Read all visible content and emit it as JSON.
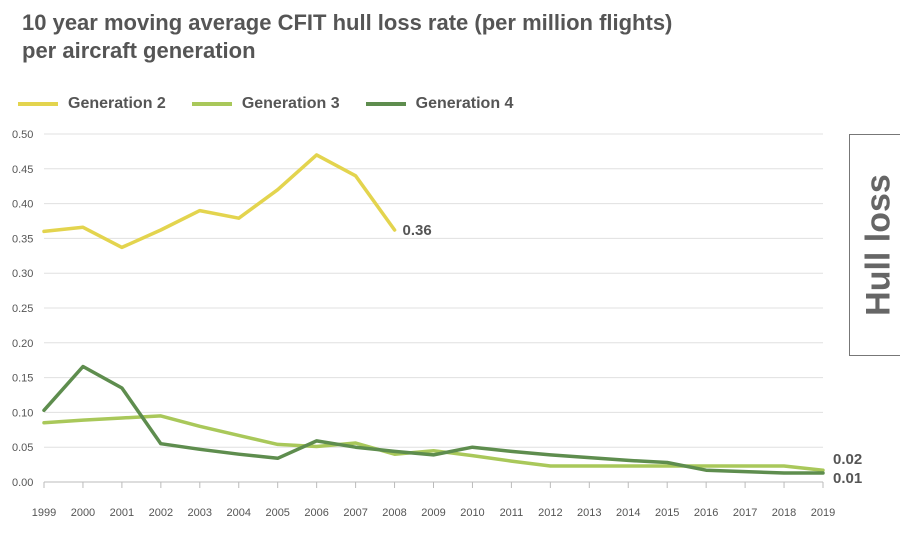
{
  "title_line1": "10 year moving average CFIT hull loss rate (per million flights)",
  "title_line2": "per aircraft generation",
  "side_tab_label": "Hull loss",
  "colors": {
    "grid": "#e0e0e0",
    "axis": "#bbbbbb",
    "tick_text": "#555555"
  },
  "chart_data": {
    "type": "line",
    "categories": [
      "1999",
      "2000",
      "2001",
      "2002",
      "2003",
      "2004",
      "2005",
      "2006",
      "2007",
      "2008",
      "2009",
      "2010",
      "2011",
      "2012",
      "2013",
      "2014",
      "2015",
      "2016",
      "2017",
      "2018",
      "2019"
    ],
    "ylim": [
      0,
      0.5
    ],
    "yticks": [
      "0.00",
      "0.05",
      "0.10",
      "0.15",
      "0.20",
      "0.25",
      "0.30",
      "0.35",
      "0.40",
      "0.45",
      "0.50"
    ],
    "grid": true,
    "legend_position": "top-left",
    "series": [
      {
        "name": "Generation 2",
        "color": "#e3d44e",
        "values": [
          0.36,
          0.366,
          0.337,
          0.362,
          0.39,
          0.379,
          0.42,
          0.47,
          0.44,
          0.362,
          null,
          null,
          null,
          null,
          null,
          null,
          null,
          null,
          null,
          null,
          null
        ],
        "end_label": "0.36"
      },
      {
        "name": "Generation 3",
        "color": "#a9c85a",
        "values": [
          0.085,
          0.089,
          0.092,
          0.095,
          0.08,
          0.067,
          0.054,
          0.051,
          0.056,
          0.04,
          0.045,
          0.038,
          0.03,
          0.023,
          0.023,
          0.023,
          0.023,
          0.023,
          0.023,
          0.023,
          0.017
        ],
        "end_label": "0.02"
      },
      {
        "name": "Generation 4",
        "color": "#5e8d4e",
        "values": [
          0.103,
          0.166,
          0.135,
          0.055,
          0.047,
          0.04,
          0.034,
          0.059,
          0.05,
          0.044,
          0.039,
          0.05,
          0.044,
          0.039,
          0.035,
          0.031,
          0.028,
          0.017,
          0.015,
          0.013,
          0.013
        ],
        "end_label": "0.01"
      }
    ]
  }
}
